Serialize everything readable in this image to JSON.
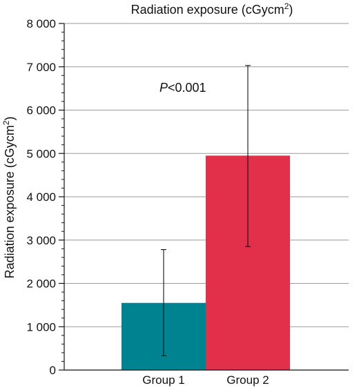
{
  "chart_data": {
    "type": "bar",
    "title": "Radiation exposure (cGycm",
    "title_sup": "2",
    "title_close": ")",
    "ylabel": "Radiation exposure (cGycm",
    "ylabel_sup": "2",
    "ylabel_close": ")",
    "xlabel": "",
    "ylim": [
      0,
      8000
    ],
    "yticks": [
      0,
      1000,
      2000,
      3000,
      4000,
      5000,
      6000,
      7000,
      8000
    ],
    "ytick_labels": [
      "0",
      "1 000",
      "2 000",
      "3 000",
      "4 000",
      "5 000",
      "6 000",
      "7 000",
      "8 000"
    ],
    "minor_tick_step": 200,
    "grid": "horizontal",
    "categories": [
      "Group 1",
      "Group 2"
    ],
    "values": [
      1550,
      4950
    ],
    "error_low": [
      330,
      2850
    ],
    "error_high": [
      2780,
      7030
    ],
    "colors": [
      "#008391",
      "#e2304a"
    ],
    "annotation_italic": "P",
    "annotation_rest": "<0.001"
  }
}
